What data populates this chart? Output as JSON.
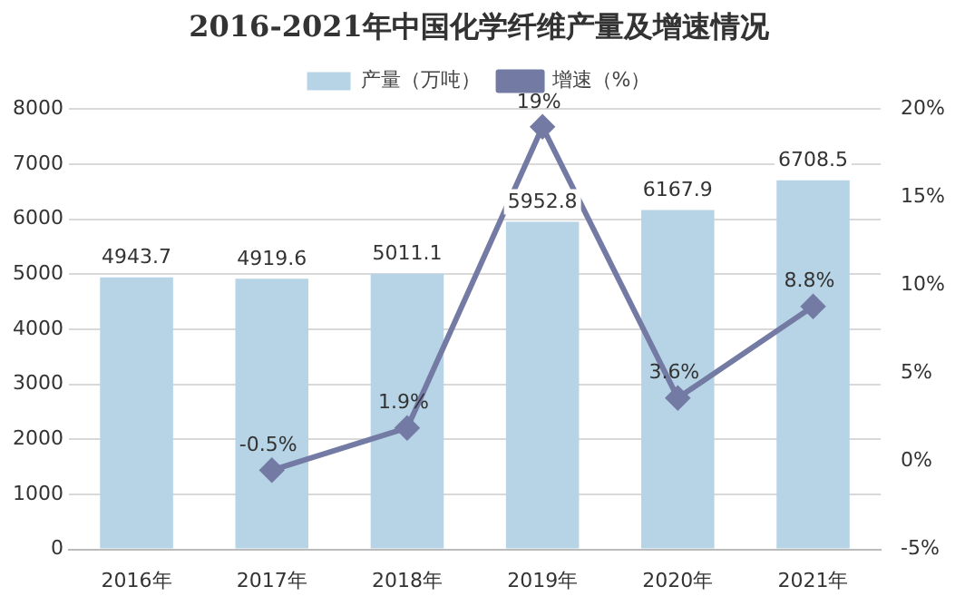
{
  "chart_data": {
    "type": "bar",
    "title": "2016-2021年中国化学纤维产量及增速情况",
    "categories": [
      "2016年",
      "2017年",
      "2018年",
      "2019年",
      "2020年",
      "2021年"
    ],
    "series": [
      {
        "name": "产量（万吨）",
        "color": "#b7d4e6",
        "values": [
          4943.7,
          4919.6,
          5011.1,
          5952.8,
          6167.9,
          6708.5
        ],
        "value_labels": [
          "4943.7",
          "4919.6",
          "5011.1",
          "5952.8",
          "6167.9",
          "6708.5"
        ]
      },
      {
        "name": "增速（%）",
        "type": "line",
        "axis": "y2",
        "color": "#737aa3",
        "values": [
          null,
          -0.5,
          1.9,
          19,
          3.6,
          8.8
        ],
        "value_labels": [
          null,
          "-0.5%",
          "1.9%",
          "19%",
          "3.6%",
          "8.8%"
        ]
      }
    ],
    "ylim": [
      0,
      8000
    ],
    "yticks": [
      0,
      1000,
      2000,
      3000,
      4000,
      5000,
      6000,
      7000,
      8000
    ],
    "y2lim": [
      -5,
      20
    ],
    "y2ticks": [
      {
        "value": -5,
        "label": "-5%"
      },
      {
        "value": 0,
        "label": "0%"
      },
      {
        "value": 5,
        "label": "5%"
      },
      {
        "value": 10,
        "label": "10%"
      },
      {
        "value": 15,
        "label": "15%"
      },
      {
        "value": 20,
        "label": "20%"
      }
    ],
    "grid": "y",
    "legend": "top",
    "marker": "diamond",
    "line_style": "solid"
  }
}
